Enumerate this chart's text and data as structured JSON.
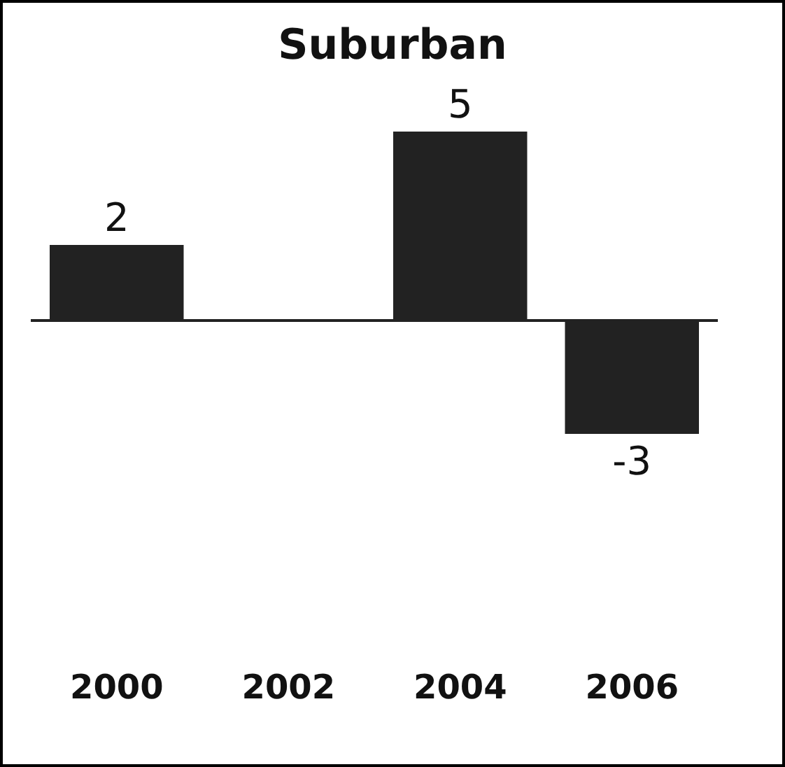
{
  "chart_data": {
    "type": "bar",
    "title": "Suburban",
    "categories": [
      "2000",
      "2002",
      "2004",
      "2006"
    ],
    "values": [
      2,
      0,
      5,
      -3
    ],
    "value_labels": [
      "2",
      null,
      "5",
      "-3"
    ],
    "color": "#222222",
    "grid": false,
    "legend": false
  }
}
